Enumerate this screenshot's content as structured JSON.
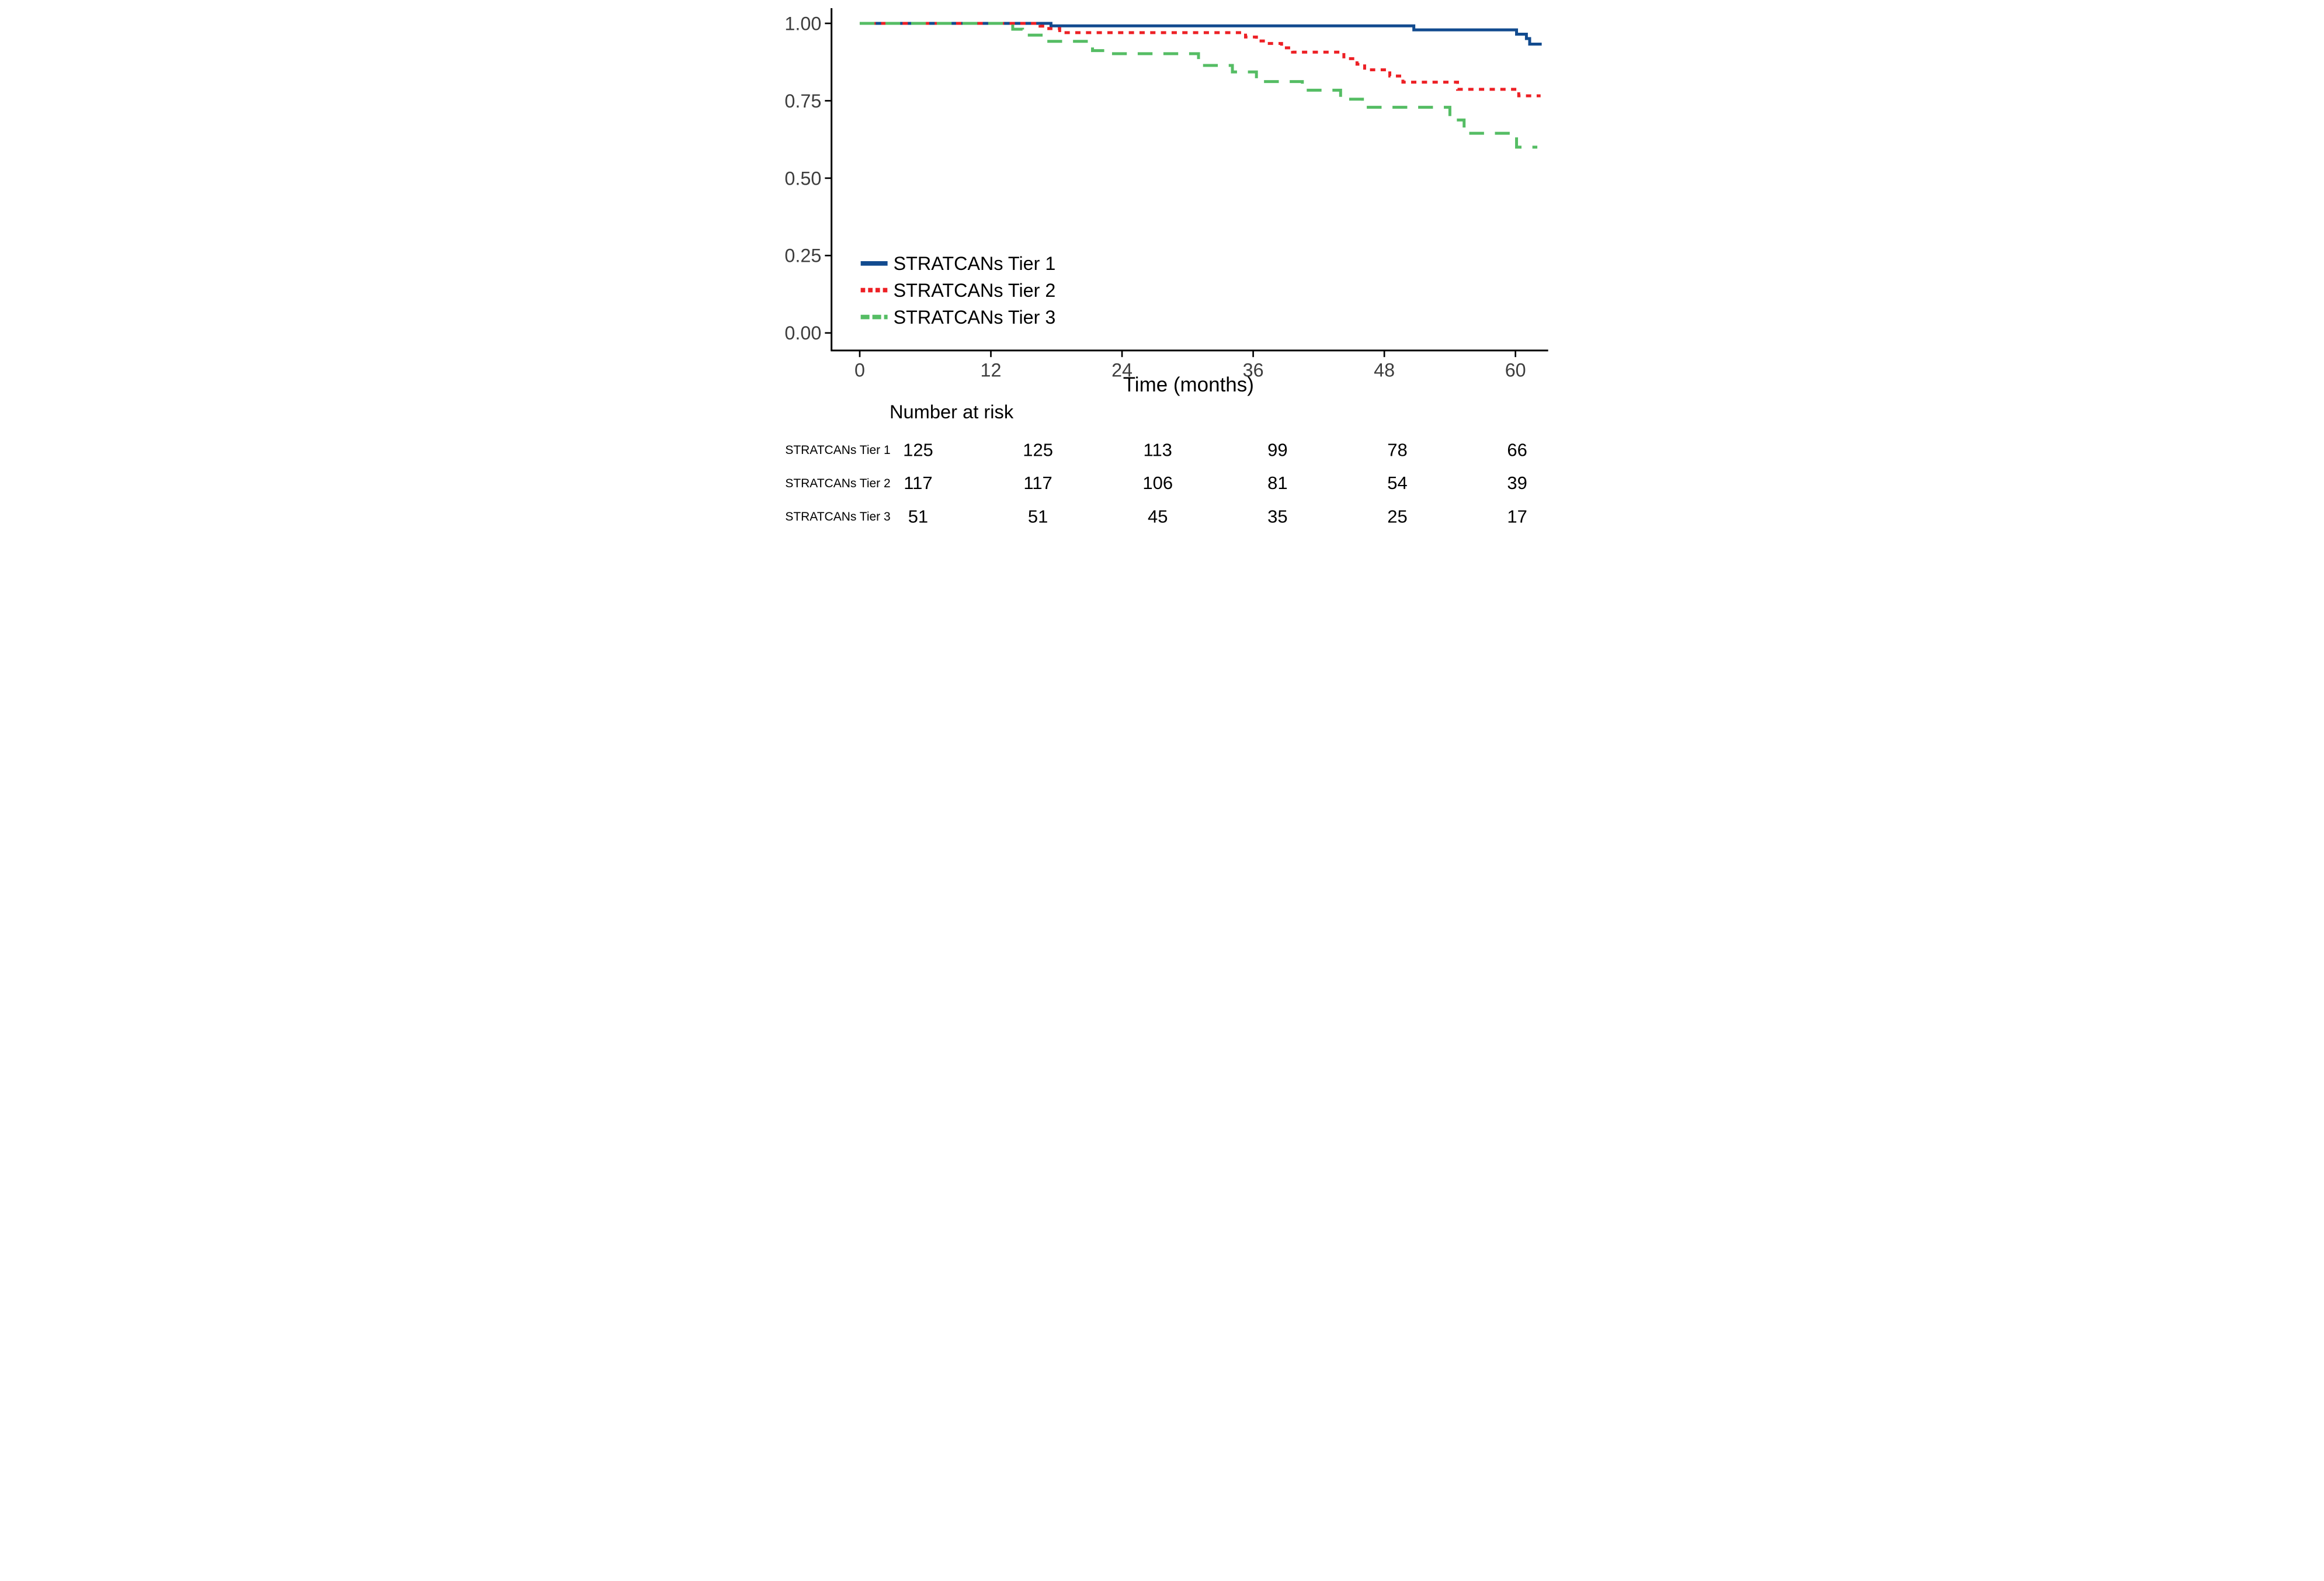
{
  "chart_data": {
    "type": "line",
    "subtype": "kaplan-meier-step",
    "title": "",
    "xlabel": "Time (months)",
    "ylabel": "",
    "xlim": [
      0,
      62.8
    ],
    "ylim": [
      0.0,
      1.0
    ],
    "grid": false,
    "legend_position": "inside-bottom-left",
    "x_ticks": [
      0,
      12,
      24,
      36,
      48,
      60
    ],
    "y_ticks": [
      {
        "value": 1.0,
        "label": "1.00"
      },
      {
        "value": 0.75,
        "label": "0.75"
      },
      {
        "value": 0.5,
        "label": "0.50"
      },
      {
        "value": 0.25,
        "label": "0.25"
      },
      {
        "value": 0.0,
        "label": "0.00"
      }
    ],
    "series": [
      {
        "name": "STRATCANs Tier 1",
        "color": "#124B8F",
        "line_style": "solid",
        "end_time": 62.4,
        "points": [
          [
            0,
            1.0
          ],
          [
            17.5,
            0.992
          ],
          [
            50.7,
            0.979
          ],
          [
            60.1,
            0.965
          ],
          [
            61.0,
            0.951
          ],
          [
            61.3,
            0.933
          ]
        ]
      },
      {
        "name": "STRATCANs Tier 2",
        "color": "#ED2025",
        "line_style": "dotted",
        "end_time": 62.3,
        "points": [
          [
            0,
            1.0
          ],
          [
            16.5,
            0.991
          ],
          [
            17.3,
            0.983
          ],
          [
            18.3,
            0.97
          ],
          [
            35.3,
            0.956
          ],
          [
            36.3,
            0.943
          ],
          [
            37.2,
            0.935
          ],
          [
            38.6,
            0.921
          ],
          [
            39.6,
            0.907
          ],
          [
            44.3,
            0.886
          ],
          [
            45.5,
            0.868
          ],
          [
            46.2,
            0.85
          ],
          [
            48.5,
            0.83
          ],
          [
            49.7,
            0.81
          ],
          [
            54.7,
            0.787
          ],
          [
            60.3,
            0.766
          ]
        ]
      },
      {
        "name": "STRATCANs Tier 3",
        "color": "#55BD64",
        "line_style": "dashed",
        "end_time": 62.0,
        "points": [
          [
            0,
            1.0
          ],
          [
            14.0,
            0.981
          ],
          [
            14.9,
            0.962
          ],
          [
            16.9,
            0.942
          ],
          [
            21.3,
            0.912
          ],
          [
            22.5,
            0.902
          ],
          [
            31.0,
            0.864
          ],
          [
            34.1,
            0.843
          ],
          [
            36.3,
            0.812
          ],
          [
            40.5,
            0.784
          ],
          [
            44.0,
            0.755
          ],
          [
            46.0,
            0.729
          ],
          [
            54.0,
            0.688
          ],
          [
            55.3,
            0.645
          ],
          [
            60.1,
            0.6
          ]
        ]
      }
    ],
    "risk_table": {
      "title": "Number at risk",
      "times": [
        0,
        12,
        24,
        36,
        48,
        60
      ],
      "rows": [
        {
          "name": "STRATCANs Tier 1",
          "values": [
            125,
            125,
            113,
            99,
            78,
            66
          ]
        },
        {
          "name": "STRATCANs Tier 2",
          "values": [
            117,
            117,
            106,
            81,
            54,
            39
          ]
        },
        {
          "name": "STRATCANs Tier 3",
          "values": [
            51,
            51,
            45,
            35,
            25,
            17
          ]
        }
      ]
    },
    "axis_color": "#000000",
    "tick_label_color": "#3d3d3d"
  }
}
